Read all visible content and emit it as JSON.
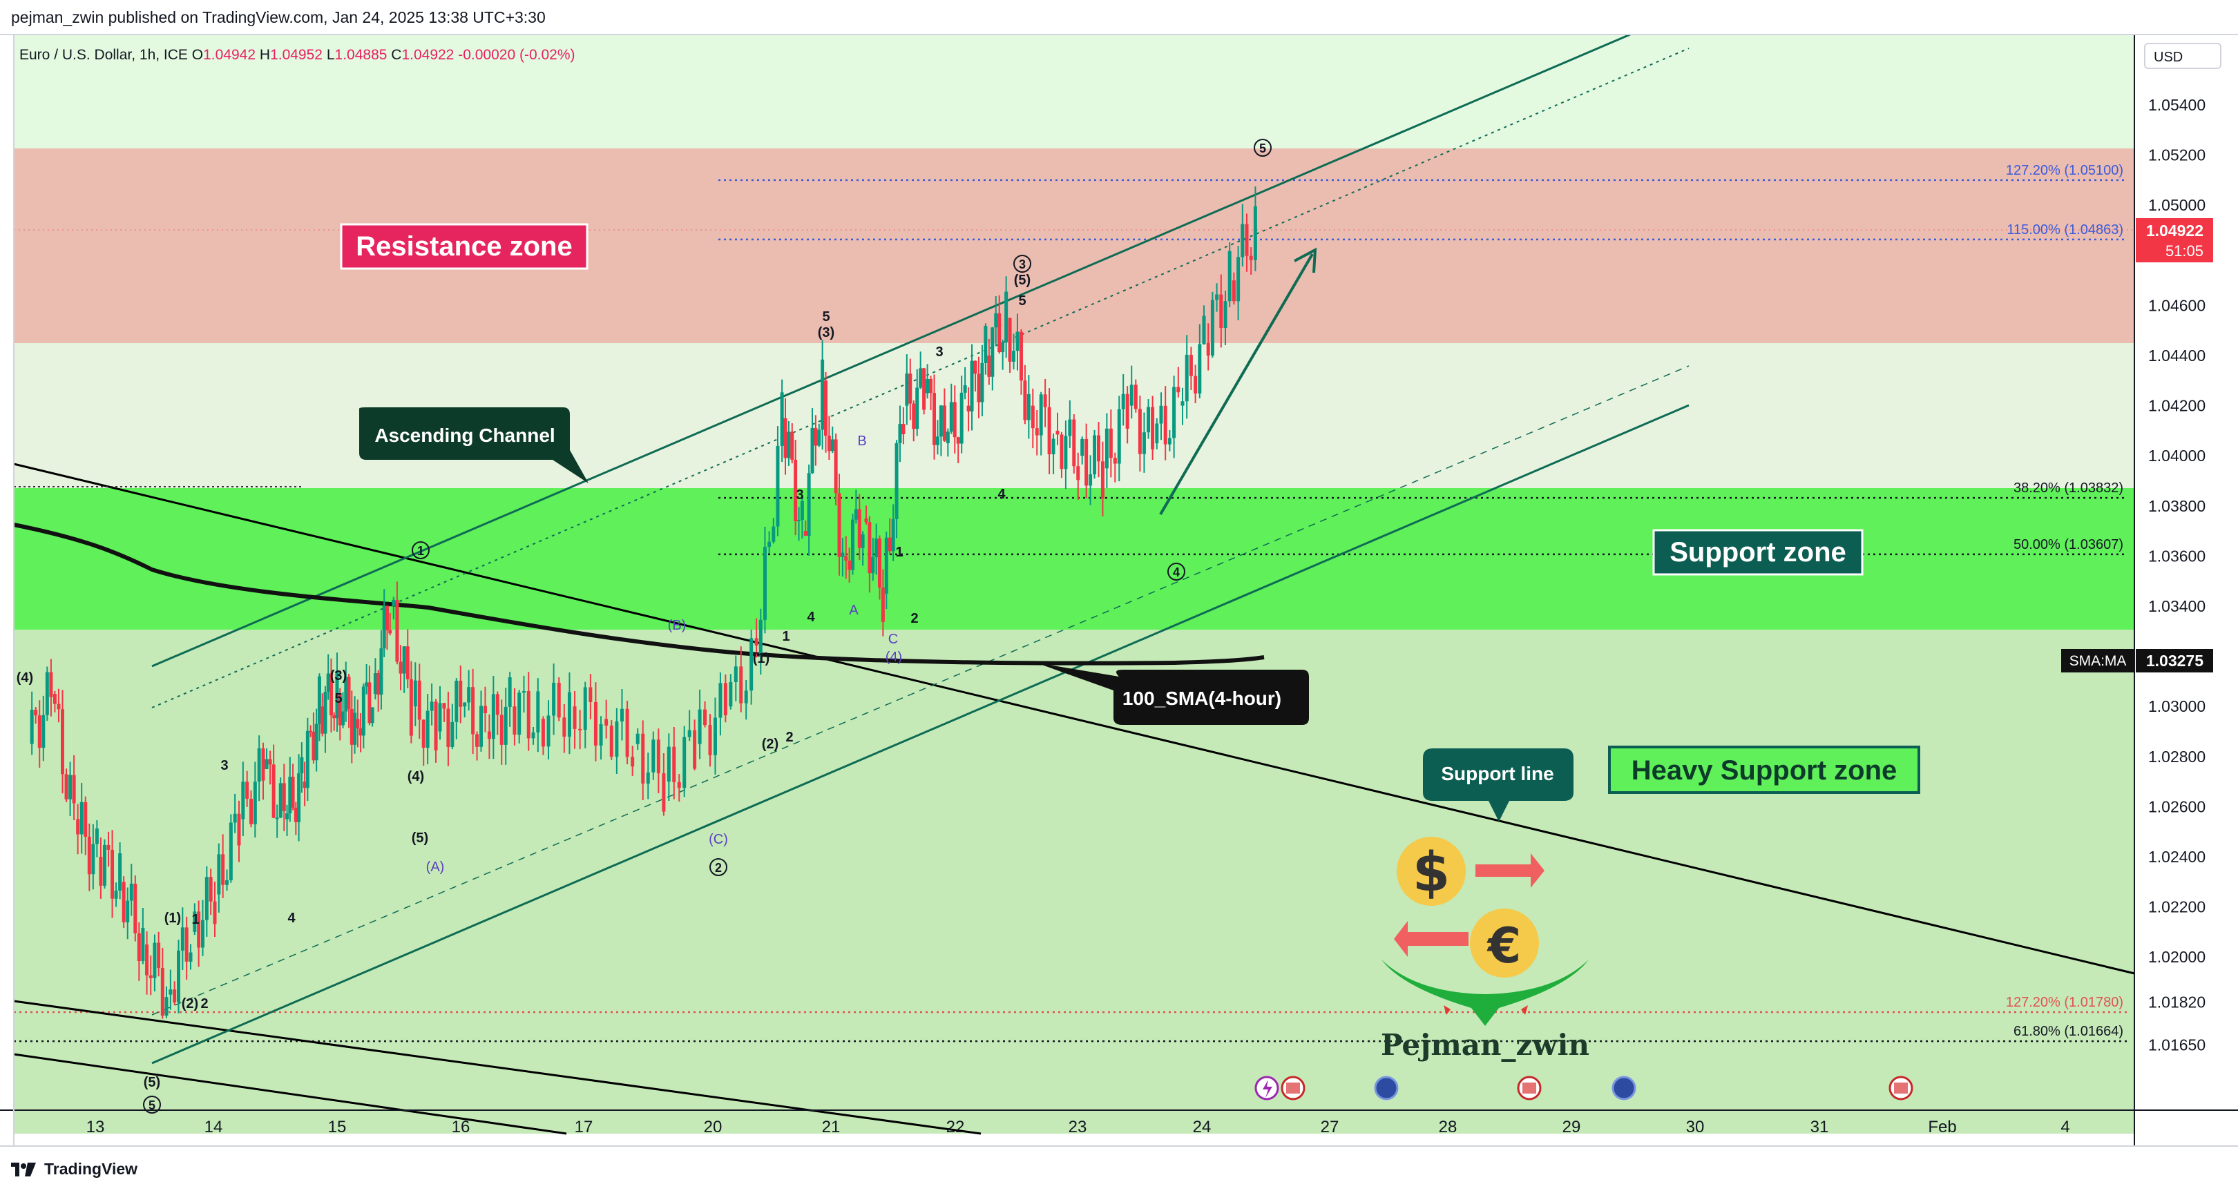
{
  "header": {
    "published": "pejman_zwin published on TradingView.com, Jan 24, 2025 13:38 UTC+3:30",
    "symbol": "Euro / U.S. Dollar, 1h, ICE",
    "open_label": "O",
    "open": "1.04942",
    "high_label": "H",
    "high": "1.04952",
    "low_label": "L",
    "low": "1.04885",
    "close_label": "C",
    "close": "1.04922",
    "change": "-0.00020 (-0.02%)",
    "currency": "USD"
  },
  "footer": {
    "brand": "TradingView",
    "logo_icon": "tradingview-logo-icon"
  },
  "colors": {
    "resistance_zone": "#ebbcb0",
    "support_zone": "#5ff05a",
    "light_green_bg": "#e3f9e0",
    "heavy_support_bg": "#c5eab7",
    "channel": "#0e6b54",
    "fib": "#3b5bdb",
    "fib_red": "#e05252",
    "candle_up": "#089981",
    "candle_down": "#f23645",
    "sma": "#111111",
    "price_tag": "#f23645"
  },
  "chart_data": {
    "type": "candlestick",
    "title": "Euro / U.S. Dollar, 1h, ICE",
    "x_ticks": [
      "13",
      "14",
      "15",
      "16",
      "17",
      "20",
      "21",
      "22",
      "23",
      "24",
      "27",
      "28",
      "29",
      "30",
      "31",
      "Feb",
      "4"
    ],
    "y_ticks": [
      "1.05400",
      "1.05200",
      "1.05000",
      "1.04800",
      "1.04600",
      "1.04400",
      "1.04200",
      "1.04000",
      "1.03800",
      "1.03600",
      "1.03400",
      "1.03200",
      "1.03000",
      "1.02800",
      "1.02600",
      "1.02400",
      "1.02200",
      "1.02000",
      "1.01820",
      "1.01650"
    ],
    "ylim": [
      1.016,
      1.0556
    ],
    "current_price": "1.04922",
    "countdown": "51:05",
    "sma_label": "SMA:MA",
    "sma_value": "1.03275",
    "price_path": [
      {
        "date": "Jan 13",
        "price": 1.0285
      },
      {
        "date": "Jan 13",
        "price": 1.0305
      },
      {
        "date": "Jan 13",
        "price": 1.0255
      },
      {
        "date": "Jan 13",
        "price": 1.024
      },
      {
        "date": "Jan 13",
        "price": 1.023
      },
      {
        "date": "Jan 13",
        "price": 1.0205
      },
      {
        "date": "Jan 14",
        "price": 1.0185
      },
      {
        "date": "Jan 14",
        "price": 1.021
      },
      {
        "date": "Jan 14",
        "price": 1.0225
      },
      {
        "date": "Jan 14",
        "price": 1.0255
      },
      {
        "date": "Jan 14",
        "price": 1.0275
      },
      {
        "date": "Jan 15",
        "price": 1.0255
      },
      {
        "date": "Jan 15",
        "price": 1.027
      },
      {
        "date": "Jan 15",
        "price": 1.03
      },
      {
        "date": "Jan 15",
        "price": 1.0305
      },
      {
        "date": "Jan 15",
        "price": 1.0295
      },
      {
        "date": "Jan 15",
        "price": 1.0305
      },
      {
        "date": "Jan 15",
        "price": 1.034
      },
      {
        "date": "Jan 16",
        "price": 1.03
      },
      {
        "date": "Jan 16",
        "price": 1.029
      },
      {
        "date": "Jan 16",
        "price": 1.03
      },
      {
        "date": "Jan 16",
        "price": 1.029
      },
      {
        "date": "Jan 16",
        "price": 1.03
      },
      {
        "date": "Jan 17",
        "price": 1.0295
      },
      {
        "date": "Jan 17",
        "price": 1.03
      },
      {
        "date": "Jan 17",
        "price": 1.0295
      },
      {
        "date": "Jan 17",
        "price": 1.0285
      },
      {
        "date": "Jan 20",
        "price": 1.027
      },
      {
        "date": "Jan 20",
        "price": 1.0285
      },
      {
        "date": "Jan 20",
        "price": 1.03
      },
      {
        "date": "Jan 20",
        "price": 1.032
      },
      {
        "date": "Jan 21",
        "price": 1.0415
      },
      {
        "date": "Jan 21",
        "price": 1.037
      },
      {
        "date": "Jan 21",
        "price": 1.043
      },
      {
        "date": "Jan 21",
        "price": 1.036
      },
      {
        "date": "Jan 21",
        "price": 1.0375
      },
      {
        "date": "Jan 21",
        "price": 1.0345
      },
      {
        "date": "Jan 22",
        "price": 1.042
      },
      {
        "date": "Jan 22",
        "price": 1.0425
      },
      {
        "date": "Jan 22",
        "price": 1.0405
      },
      {
        "date": "Jan 22",
        "price": 1.042
      },
      {
        "date": "Jan 22",
        "price": 1.044
      },
      {
        "date": "Jan 22",
        "price": 1.0455
      },
      {
        "date": "Jan 23",
        "price": 1.042
      },
      {
        "date": "Jan 23",
        "price": 1.041
      },
      {
        "date": "Jan 23",
        "price": 1.04
      },
      {
        "date": "Jan 23",
        "price": 1.0395
      },
      {
        "date": "Jan 23",
        "price": 1.042
      },
      {
        "date": "Jan 24",
        "price": 1.0405
      },
      {
        "date": "Jan 24",
        "price": 1.042
      },
      {
        "date": "Jan 24",
        "price": 1.0445
      },
      {
        "date": "Jan 24",
        "price": 1.047
      },
      {
        "date": "Jan 24",
        "price": 1.0492
      }
    ],
    "fib_levels": [
      {
        "label": "127.20% (1.05100)",
        "price": 1.051,
        "color": "#3b5bdb"
      },
      {
        "label": "115.00% (1.04863)",
        "price": 1.04863,
        "color": "#3b5bdb"
      },
      {
        "label": "38.20% (1.03832)",
        "price": 1.03832,
        "color": "#131722"
      },
      {
        "label": "50.00% (1.03607)",
        "price": 1.03607,
        "color": "#131722"
      },
      {
        "label": "127.20% (1.01780)",
        "price": 1.0178,
        "color": "#e05252"
      },
      {
        "label": "61.80% (1.01664)",
        "price": 1.01664,
        "color": "#131722"
      }
    ],
    "annotations": {
      "resistance": "Resistance zone",
      "support": "Support zone",
      "heavy_support": "Heavy Support zone",
      "channel": "Ascending Channel",
      "sma": "100_SMA(4-hour)",
      "support_line": "Support line",
      "author": "Pejman_zwin"
    },
    "wave_labels": [
      {
        "text": "(4)"
      },
      {
        "text": "(3)"
      },
      {
        "text": "5"
      },
      {
        "text": "3"
      },
      {
        "text": "(1)"
      },
      {
        "text": "1"
      },
      {
        "text": "(2)"
      },
      {
        "text": "2"
      },
      {
        "text": "4"
      },
      {
        "text": "(4)"
      },
      {
        "text": "(A)"
      },
      {
        "text": "(5)"
      },
      {
        "text": "(B)"
      },
      {
        "text": "(1)"
      },
      {
        "text": "(2)"
      },
      {
        "text": "2"
      },
      {
        "text": "(C)"
      },
      {
        "text": "1"
      },
      {
        "text": "4"
      },
      {
        "text": "3"
      },
      {
        "text": "(3)"
      },
      {
        "text": "5"
      },
      {
        "text": "B"
      },
      {
        "text": "A"
      },
      {
        "text": "1"
      },
      {
        "text": "2"
      },
      {
        "text": "C"
      },
      {
        "text": "(4)"
      },
      {
        "text": "3"
      },
      {
        "text": "(5)"
      },
      {
        "text": "5"
      },
      {
        "text": "4"
      },
      {
        "text": "(5)"
      }
    ],
    "circled_labels": [
      "1",
      "5",
      "2",
      "3",
      "4",
      "5"
    ],
    "symbols": [
      "dollar-coin-icon",
      "euro-coin-icon",
      "exchange-arrow-icon",
      "support-bowl-icon",
      "calendar-event-icons"
    ]
  }
}
